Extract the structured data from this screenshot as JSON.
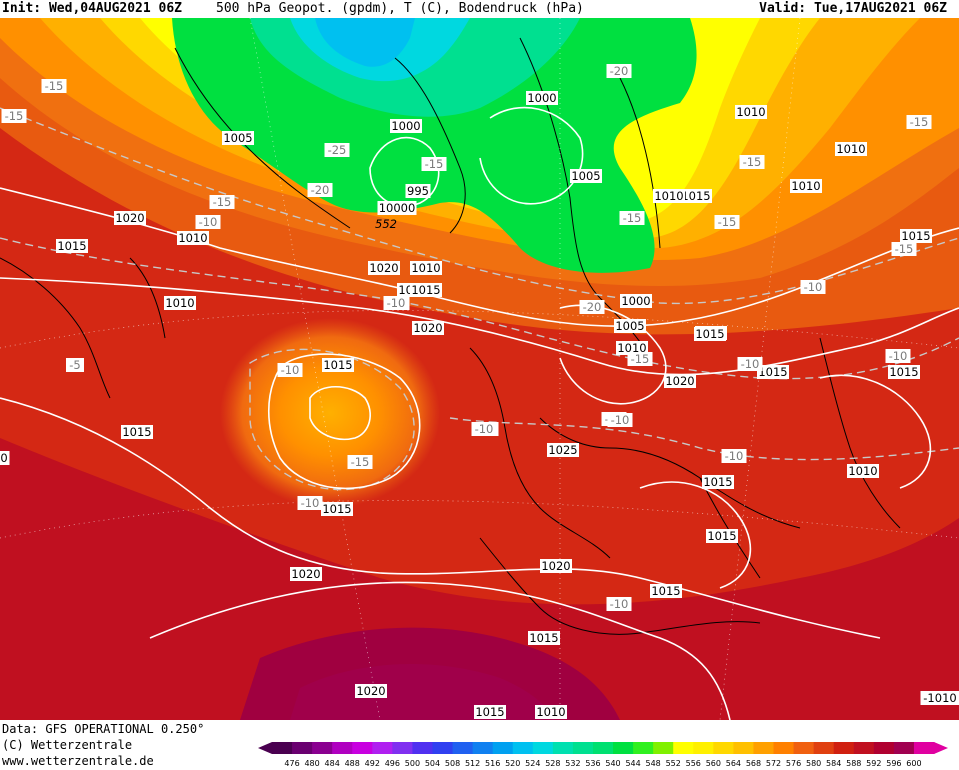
{
  "header": {
    "init": "Init: Wed,04AUG2021 06Z",
    "title": "500 hPa Geopot. (gpdm), T (C), Bodendruck (hPa)",
    "valid": "Valid: Tue,17AUG2021 06Z"
  },
  "footer": {
    "data_source": "Data: GFS OPERATIONAL 0.250°",
    "copyright": "(C) Wetterzentrale",
    "url": "www.wetterzentrale.de"
  },
  "colorbar": {
    "ticks": [
      "476",
      "480",
      "484",
      "488",
      "492",
      "496",
      "500",
      "504",
      "508",
      "512",
      "516",
      "520",
      "524",
      "528",
      "532",
      "536",
      "540",
      "544",
      "548",
      "552",
      "556",
      "560",
      "564",
      "568",
      "572",
      "576",
      "580",
      "584",
      "588",
      "592",
      "596",
      "600"
    ],
    "colors": [
      "#4a0050",
      "#6a0070",
      "#8a0090",
      "#b000c0",
      "#c800e0",
      "#b020f0",
      "#8030f0",
      "#5030f0",
      "#3040f0",
      "#2060f0",
      "#1080f0",
      "#00a0f0",
      "#00c0f0",
      "#00d8e0",
      "#00e0b0",
      "#00e090",
      "#00e070",
      "#00e040",
      "#30f020",
      "#80f000",
      "#ffff00",
      "#fff000",
      "#ffd800",
      "#ffc000",
      "#ffa000",
      "#ff8000",
      "#f06010",
      "#e04010",
      "#d02010",
      "#c01020",
      "#b00030",
      "#a00050",
      "#e000a0"
    ]
  },
  "isobar_labels": [
    "1005",
    "1000",
    "1005",
    "1010",
    "1015",
    "1020",
    "1015",
    "1010",
    "1000",
    "995",
    "10000",
    "1005",
    "1010",
    "1015",
    "1010",
    "1020",
    "1015",
    "1010",
    "1015",
    "1020",
    "1015",
    "1010",
    "1015",
    "1020",
    "1025",
    "1015",
    "1010",
    "1015",
    "1015",
    "1020",
    "1015",
    "1020",
    "1015",
    "1010",
    "1015",
    "1020",
    "1015",
    "1010",
    "1015",
    "1010",
    "1015",
    "1000",
    "1005",
    "1010",
    "1015",
    "-1010",
    "0"
  ],
  "isotherm_labels": [
    "-15",
    "-15",
    "-15",
    "-15",
    "-10",
    "-25",
    "-20",
    "-15",
    "-15",
    "-20",
    "-15",
    "-10",
    "-15",
    "-10",
    "-10",
    "-10",
    "-10",
    "-10",
    "-5",
    "-10",
    "-10",
    "-15",
    "-15",
    "-10",
    "-10",
    "-10",
    "-20",
    "-15",
    "-10",
    "-10"
  ],
  "geopot_labels": [
    "552"
  ]
}
